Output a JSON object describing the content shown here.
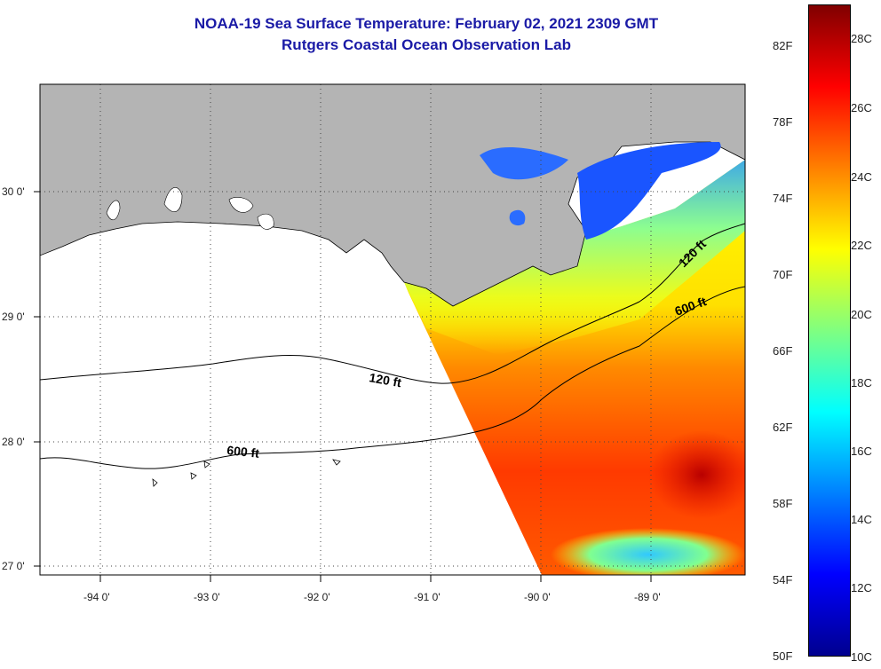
{
  "title": {
    "line1": "NOAA-19 Sea Surface Temperature:  February 02, 2021 2309 GMT",
    "line2": "Rutgers Coastal Ocean Observation Lab"
  },
  "map": {
    "lat_labels": [
      "30 0'",
      "29 0'",
      "28 0'",
      "27 0'"
    ],
    "lon_labels": [
      "-94 0'",
      "-93 0'",
      "-92 0'",
      "-91 0'",
      "-90 0'",
      "-89 0'"
    ],
    "contours": [
      "120 ft",
      "600 ft",
      "120 ft",
      "600 ft"
    ],
    "colors": {
      "land": "#b4b4b4",
      "nodata": "#ffffff"
    }
  },
  "colorbar": {
    "fahrenheit": [
      "82F",
      "78F",
      "74F",
      "70F",
      "66F",
      "62F",
      "58F",
      "54F",
      "50F"
    ],
    "celsius": [
      "28C",
      "26C",
      "24C",
      "22C",
      "20C",
      "18C",
      "16C",
      "14C",
      "12C",
      "10C"
    ],
    "colors": [
      "#00008f",
      "#0000ff",
      "#0080ff",
      "#00ffff",
      "#80ff80",
      "#ffff00",
      "#ff8000",
      "#ff0000",
      "#800000"
    ]
  }
}
